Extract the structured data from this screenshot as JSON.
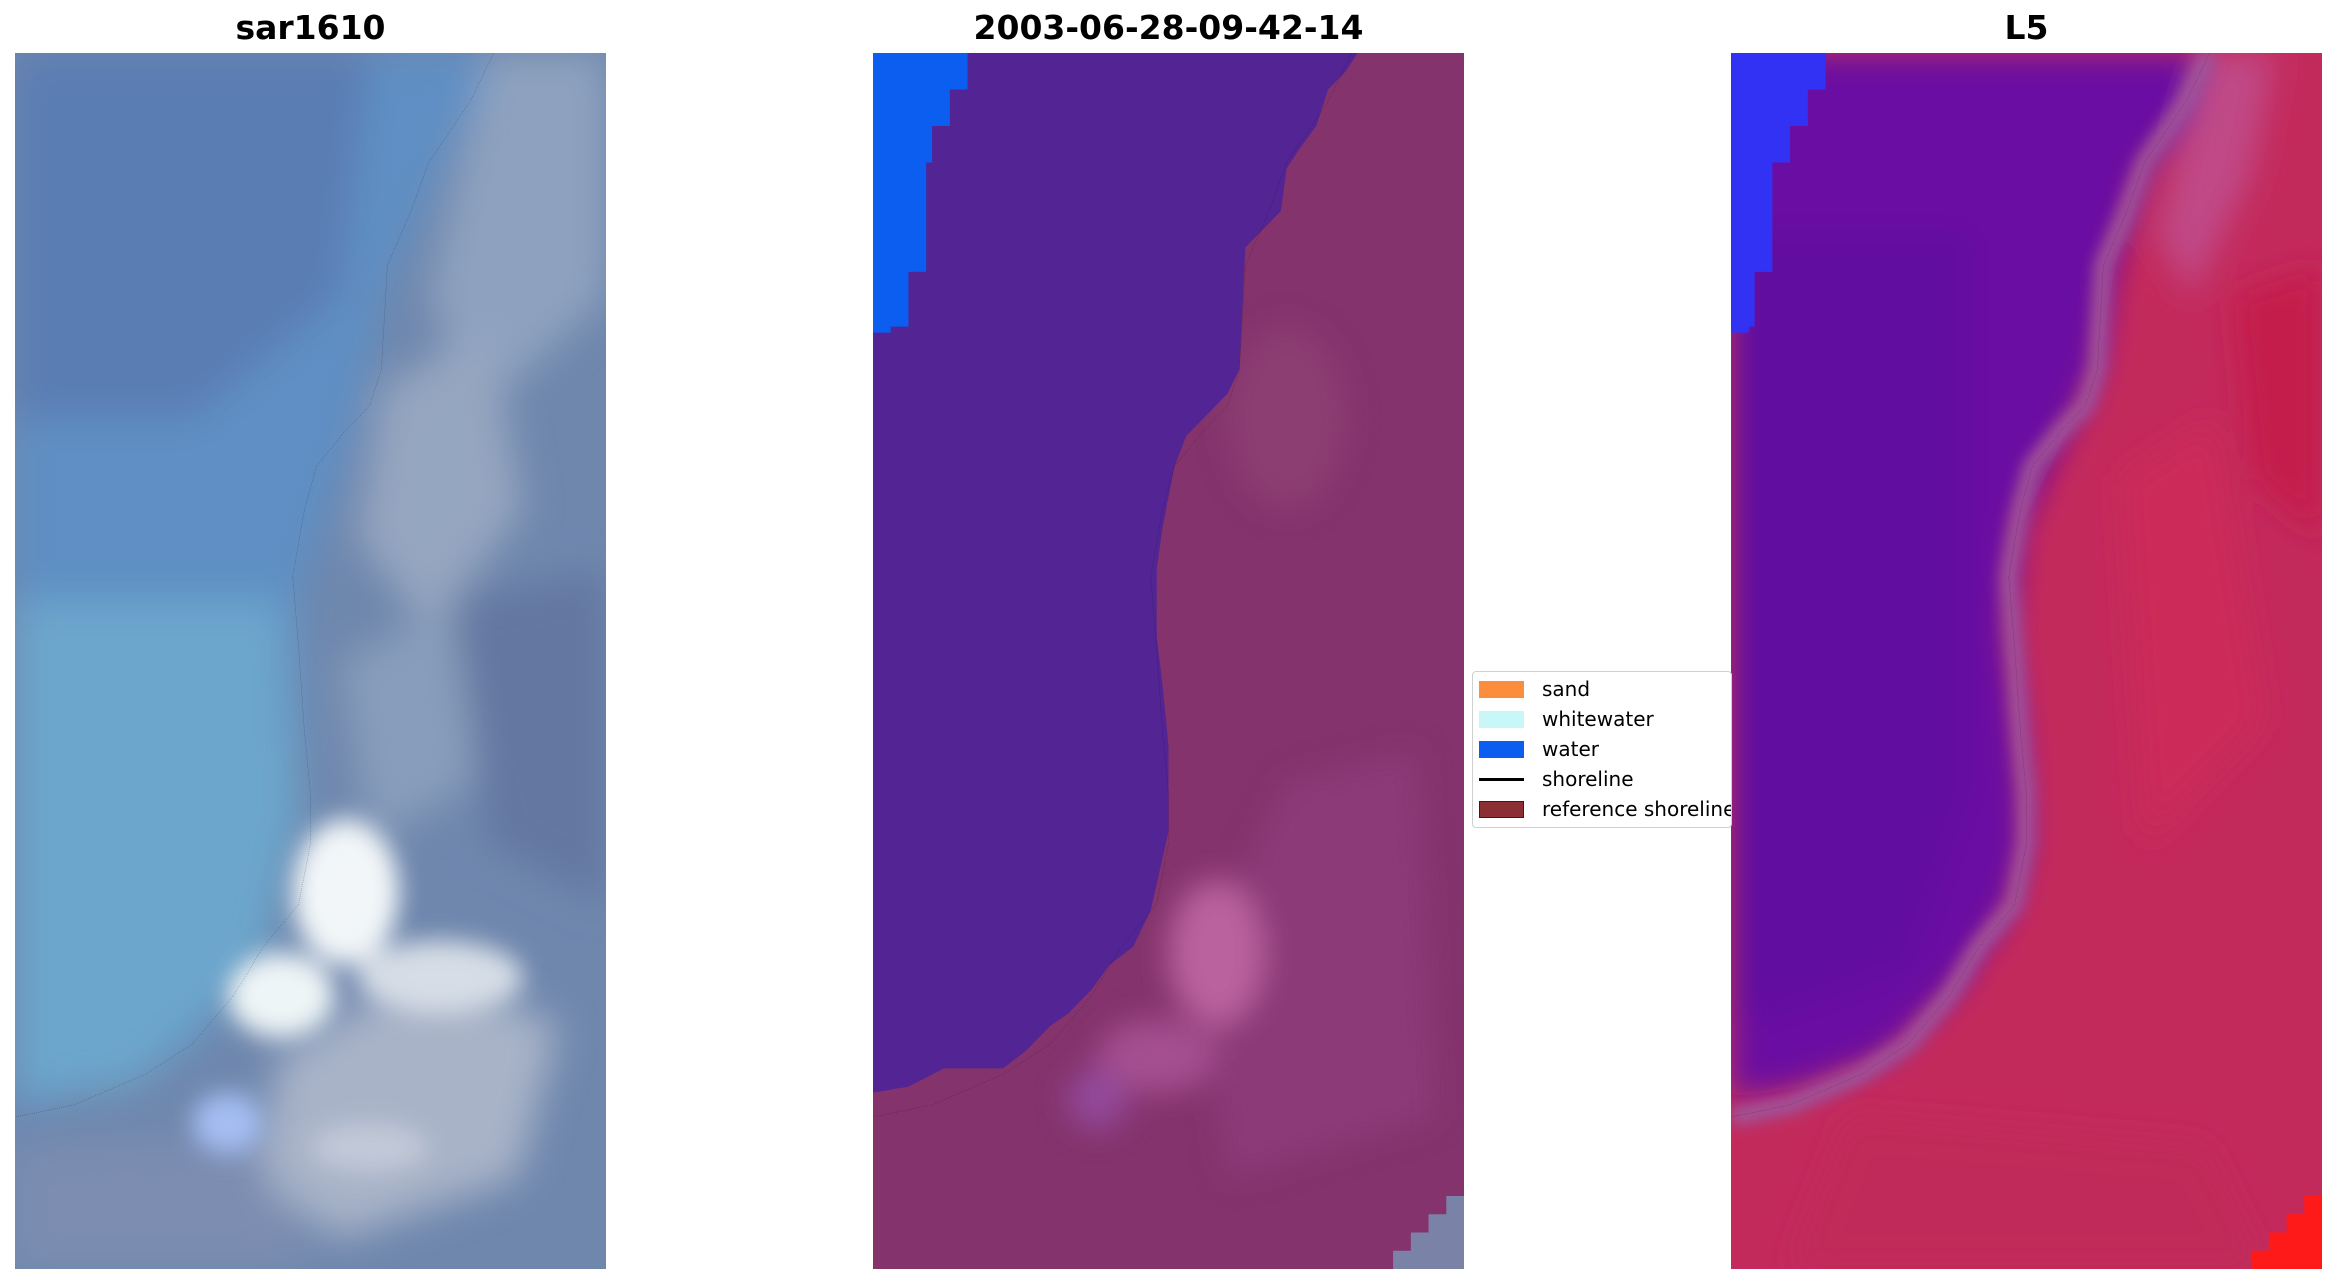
{
  "figure": {
    "panels": [
      {
        "title": "sar1610"
      },
      {
        "title": "2003-06-28-09-42-14"
      },
      {
        "title": "L5"
      }
    ]
  },
  "legend": {
    "items": [
      {
        "label": "sand",
        "color": "#fc8d3c",
        "kind": "patch"
      },
      {
        "label": "whitewater",
        "color": "#c8f7f7",
        "kind": "patch"
      },
      {
        "label": "water",
        "color": "#0b5ef0",
        "kind": "patch"
      },
      {
        "label": "shoreline",
        "color": "#000000",
        "kind": "line"
      },
      {
        "label": "reference shoreline",
        "color": "#8b2f35",
        "kind": "patch"
      }
    ]
  },
  "colors": {
    "rgb_water": "#5a82b4",
    "rgb_land": "#6c7ea6",
    "classified_water": "#522494",
    "classified_land": "#84336c",
    "classified_water_class": "#0b5ef0",
    "mndwi_low": "#5a0ea0",
    "mndwi_high": "#c82050",
    "shoreline": "#000000"
  }
}
